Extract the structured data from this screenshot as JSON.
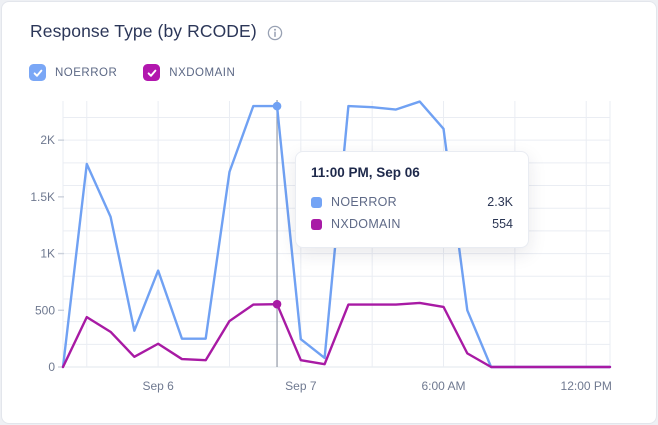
{
  "card": {
    "title": "Response Type (by RCODE)"
  },
  "legend": {
    "items": [
      {
        "label": "NOERROR",
        "color": "#7aa7f6",
        "checked": true
      },
      {
        "label": "NXDOMAIN",
        "color": "#b217ae",
        "checked": true
      }
    ]
  },
  "tooltip": {
    "title": "11:00 PM, Sep 06",
    "rows": [
      {
        "label": "NOERROR",
        "value": "2.3K",
        "color": "#74a4f5"
      },
      {
        "label": "NXDOMAIN",
        "value": "554",
        "color": "#a81ba6"
      }
    ]
  },
  "chart_data": {
    "type": "line",
    "title": "Response Type (by RCODE)",
    "xlabel": "",
    "ylabel": "",
    "ylim": [
      0,
      2345
    ],
    "y_grid_step": 200,
    "y_ticks": {
      "labels": [
        "0",
        "500",
        "1K",
        "1.5K",
        "2K"
      ],
      "values": [
        0,
        500,
        1000,
        1500,
        2000
      ]
    },
    "x_tick_labels": [
      "Sep 6",
      "Sep 7",
      "6:00 AM",
      "12:00 PM"
    ],
    "x_tick_indices": [
      4,
      10,
      16,
      22
    ],
    "x_grid_indices": [
      0,
      1,
      4,
      7,
      10,
      13,
      16,
      19,
      22,
      23
    ],
    "legend_position": "top-left",
    "grid": true,
    "highlight_index": 9,
    "highlight_label": "11:00 PM, Sep 06",
    "series": [
      {
        "name": "NOERROR",
        "color": "#70a1f3",
        "values": [
          0,
          1790,
          1325,
          320,
          850,
          250,
          250,
          1720,
          2300,
          2300,
          245,
          80,
          2300,
          2290,
          2270,
          2340,
          2100,
          500,
          0,
          0,
          0,
          0,
          0,
          0
        ]
      },
      {
        "name": "NXDOMAIN",
        "color": "#a81aa4",
        "values": [
          0,
          440,
          310,
          90,
          205,
          70,
          60,
          405,
          550,
          554,
          60,
          25,
          550,
          550,
          550,
          565,
          530,
          120,
          0,
          0,
          0,
          0,
          0,
          0
        ]
      }
    ]
  }
}
